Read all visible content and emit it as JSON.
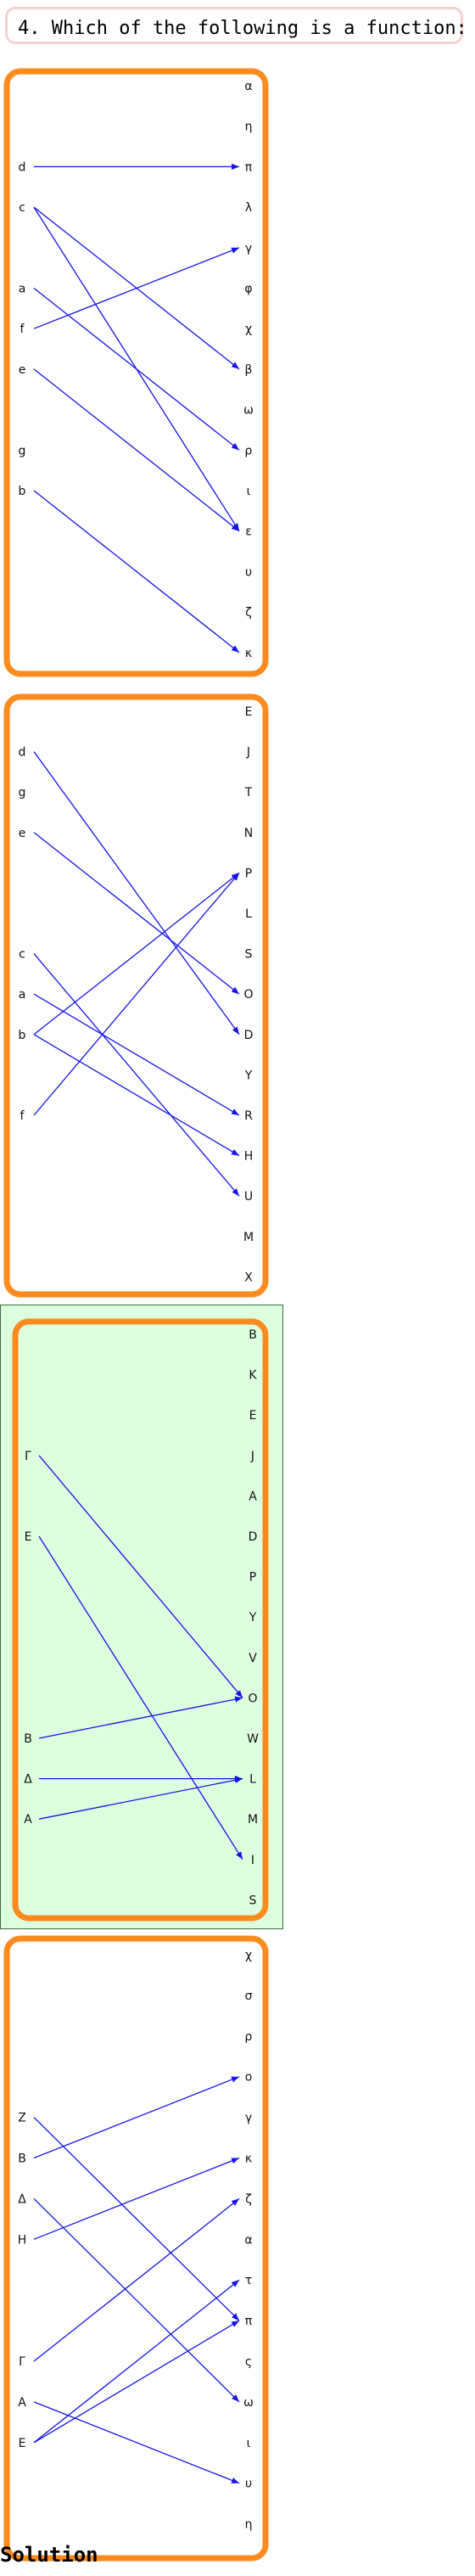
{
  "question": {
    "text": "4. Which of the following is a function:"
  },
  "solution_label": "Solution",
  "colors": {
    "frame": "#fb8a1f",
    "arrow": "#1414e6",
    "highlight_bg": "#deffde",
    "highlight_border": "#3a6b3a",
    "question_border": "#f7d0d0"
  },
  "diagrams": [
    {
      "domain": [
        "d",
        "c",
        "a",
        "f",
        "e",
        "g",
        "b"
      ],
      "codomain": [
        "α",
        "η",
        "π",
        "λ",
        "γ",
        "φ",
        "χ",
        "β",
        "ω",
        "ρ",
        "ι",
        "ε",
        "υ",
        "ζ",
        "κ"
      ],
      "arrows": [
        [
          "d",
          "π"
        ],
        [
          "c",
          "β"
        ],
        [
          "c",
          "ε"
        ],
        [
          "a",
          "ρ"
        ],
        [
          "f",
          "γ"
        ],
        [
          "e",
          "ε"
        ],
        [
          "b",
          "κ"
        ]
      ],
      "highlighted": false
    },
    {
      "domain": [
        "d",
        "g",
        "e",
        "c",
        "a",
        "b",
        "f"
      ],
      "codomain": [
        "E",
        "J",
        "T",
        "N",
        "P",
        "L",
        "S",
        "O",
        "D",
        "Y",
        "R",
        "H",
        "U",
        "M",
        "X"
      ],
      "arrows": [
        [
          "d",
          "D"
        ],
        [
          "e",
          "O"
        ],
        [
          "c",
          "U"
        ],
        [
          "a",
          "R"
        ],
        [
          "b",
          "P"
        ],
        [
          "b",
          "H"
        ],
        [
          "f",
          "P"
        ]
      ],
      "highlighted": false
    },
    {
      "domain": [
        "Γ",
        "E",
        "B",
        "Δ",
        "A"
      ],
      "codomain": [
        "B",
        "K",
        "E",
        "J",
        "A",
        "D",
        "P",
        "Y",
        "V",
        "O",
        "W",
        "L",
        "M",
        "I",
        "S"
      ],
      "arrows": [
        [
          "Γ",
          "O"
        ],
        [
          "E",
          "I"
        ],
        [
          "B",
          "O"
        ],
        [
          "Δ",
          "L"
        ],
        [
          "A",
          "L"
        ]
      ],
      "highlighted": true
    },
    {
      "domain": [
        "Z",
        "B",
        "Δ",
        "H",
        "Γ",
        "A",
        "E"
      ],
      "codomain": [
        "χ",
        "σ",
        "ρ",
        "ο",
        "γ",
        "κ",
        "ζ",
        "α",
        "τ",
        "π",
        "ς",
        "ω",
        "ι",
        "υ",
        "η"
      ],
      "arrows": [
        [
          "Z",
          "π"
        ],
        [
          "B",
          "ο"
        ],
        [
          "Δ",
          "ω"
        ],
        [
          "H",
          "κ"
        ],
        [
          "Γ",
          "ζ"
        ],
        [
          "A",
          "υ"
        ],
        [
          "E",
          "τ"
        ],
        [
          "E",
          "π"
        ]
      ],
      "highlighted": false
    }
  ]
}
